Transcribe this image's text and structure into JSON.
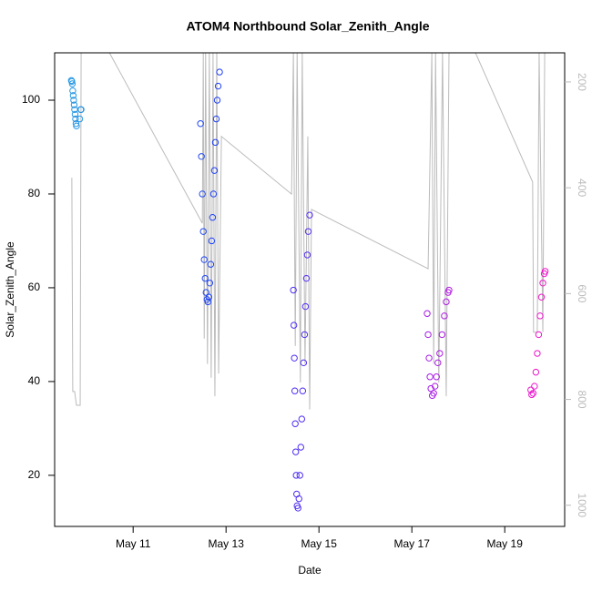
{
  "chart_data": {
    "type": "scatter",
    "title": "ATOM4 Northbound Solar_Zenith_Angle",
    "x_label": "Date",
    "y_label": "Solar_Zenith_Angle",
    "xlim": [
      9.31,
      20.29
    ],
    "xticks": [
      {
        "value": 11,
        "label": "May 11"
      },
      {
        "value": 13,
        "label": "May 13"
      },
      {
        "value": 15,
        "label": "May 15"
      },
      {
        "value": 17,
        "label": "May 17"
      },
      {
        "value": 19,
        "label": "May 19"
      }
    ],
    "ylim": [
      9.1,
      110.1
    ],
    "yticks": [
      20,
      40,
      60,
      80,
      100
    ],
    "y2lim": [
      1040,
      145
    ],
    "y2ticks": [
      200,
      400,
      600,
      800,
      1000
    ],
    "series": [
      {
        "color_scale": [
          "#29A3E0",
          "#1F3BF5",
          "#8F1FF0",
          "#FF14C4"
        ],
        "x": [
          9.67,
          9.68,
          9.69,
          9.7,
          9.71,
          9.72,
          9.73,
          9.74,
          9.75,
          9.76,
          9.77,
          9.78,
          9.85,
          9.87,
          9.88,
          12.45,
          12.47,
          12.49,
          12.51,
          12.53,
          12.55,
          12.57,
          12.59,
          12.61,
          12.63,
          12.65,
          12.67,
          12.69,
          12.71,
          12.73,
          12.75,
          12.77,
          12.79,
          12.81,
          12.83,
          12.86,
          14.45,
          14.46,
          14.47,
          14.48,
          14.49,
          14.5,
          14.51,
          14.52,
          14.53,
          14.55,
          14.57,
          14.59,
          14.61,
          14.63,
          14.65,
          14.67,
          14.69,
          14.71,
          14.73,
          14.75,
          14.77,
          14.8,
          17.33,
          17.35,
          17.37,
          17.39,
          17.41,
          17.44,
          17.47,
          17.5,
          17.53,
          17.56,
          17.6,
          17.65,
          17.7,
          17.74,
          17.78,
          17.8,
          19.56,
          19.58,
          19.61,
          19.64,
          19.67,
          19.7,
          19.73,
          19.76,
          19.79,
          19.82,
          19.85,
          19.87
        ],
        "values": [
          104.2,
          104,
          103.5,
          102,
          101,
          100,
          99,
          98,
          97,
          96,
          95,
          94.5,
          96,
          98,
          98,
          95,
          88,
          80,
          72,
          66,
          62,
          59,
          57.5,
          57,
          58,
          61,
          65,
          70,
          75,
          80,
          85,
          91,
          96,
          100,
          103,
          106,
          59.5,
          52,
          45,
          38,
          31,
          25,
          20,
          16,
          13.5,
          13,
          15,
          20,
          26,
          32,
          38,
          44,
          50,
          56,
          62,
          67,
          72,
          75.5,
          54.5,
          50,
          45,
          41,
          38.5,
          37,
          37.5,
          39,
          41,
          44,
          46,
          50,
          54,
          57,
          59,
          59.5,
          38.2,
          37.2,
          37.5,
          39,
          42,
          46,
          50,
          54,
          58,
          61,
          63,
          63.5
        ]
      },
      {
        "color": "#bbbbbb",
        "axis": "y2",
        "x": [
          9.68,
          9.7,
          9.74,
          9.78,
          9.86,
          9.88,
          10.49,
          12.49,
          12.51,
          12.53,
          12.56,
          12.6,
          12.64,
          12.68,
          12.72,
          12.76,
          12.8,
          12.84,
          12.9,
          14.41,
          14.45,
          14.49,
          14.53,
          14.6,
          14.64,
          14.7,
          14.76,
          14.8,
          14.84,
          17.35,
          17.43,
          17.47,
          17.51,
          17.58,
          17.66,
          17.74,
          17.8,
          18.37,
          19.6,
          19.62,
          19.7,
          19.74,
          19.82,
          19.86
        ],
        "values": [
          381,
          785,
          785,
          811,
          811,
          145,
          145,
          467,
          145,
          685,
          145,
          733,
          145,
          759,
          145,
          794,
          145,
          751,
          303,
          412,
          145,
          699,
          145,
          768,
          145,
          733,
          303,
          819,
          441,
          553,
          145,
          733,
          145,
          768,
          145,
          794,
          145,
          145,
          389,
          673,
          673,
          145,
          673,
          145
        ]
      }
    ]
  }
}
